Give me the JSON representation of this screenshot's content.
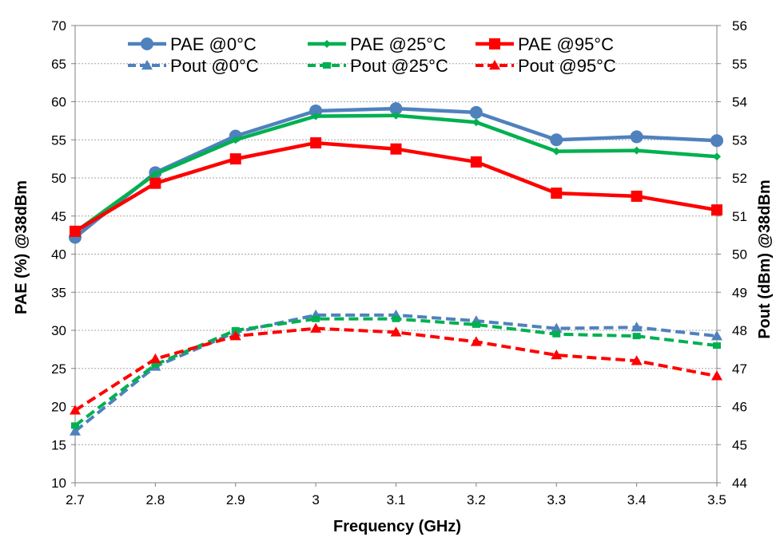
{
  "chart_data": {
    "type": "line",
    "x": [
      2.7,
      2.8,
      2.9,
      3.0,
      3.1,
      3.2,
      3.3,
      3.4,
      3.5
    ],
    "x_tick_labels": [
      "2.7",
      "2.8",
      "2.9",
      "3",
      "3.1",
      "3.2",
      "3.3",
      "3.4",
      "3.5"
    ],
    "xlabel": "Frequency (GHz)",
    "xlim": [
      2.7,
      3.5
    ],
    "ylabel_left": "PAE (%) @38dBm",
    "ylim_left": [
      10,
      70
    ],
    "yticks_left": [
      "10",
      "15",
      "20",
      "25",
      "30",
      "35",
      "40",
      "45",
      "50",
      "55",
      "60",
      "65",
      "70"
    ],
    "ylabel_right": "Pout (dBm) @38dBm",
    "ylim_right": [
      44,
      56
    ],
    "yticks_right": [
      "44",
      "45",
      "46",
      "47",
      "48",
      "49",
      "50",
      "51",
      "52",
      "53",
      "54",
      "55",
      "56"
    ],
    "grid": "horizontal dotted",
    "legend_position": "top, 3 columns by 2 rows",
    "series": [
      {
        "name": "PAE  @0°C",
        "axis": "left",
        "color": "#4f81bd",
        "style": "solid",
        "marker": "circle",
        "values": [
          42.2,
          50.7,
          55.5,
          58.8,
          59.1,
          58.6,
          55.0,
          55.4,
          54.9
        ]
      },
      {
        "name": "PAE  @25°C",
        "axis": "left",
        "color": "#00b050",
        "style": "solid",
        "marker": "diamond",
        "values": [
          42.9,
          50.5,
          55.0,
          58.1,
          58.2,
          57.3,
          53.5,
          53.6,
          52.8
        ]
      },
      {
        "name": "PAE  @95°C",
        "axis": "left",
        "color": "#ff0000",
        "style": "solid",
        "marker": "square",
        "values": [
          43.0,
          49.3,
          52.5,
          54.6,
          53.8,
          52.1,
          48.0,
          47.6,
          45.8
        ]
      },
      {
        "name": "Pout  @0°C",
        "axis": "right",
        "color": "#4f81bd",
        "style": "dashed",
        "marker": "triangle",
        "values": [
          45.35,
          47.05,
          47.95,
          48.4,
          48.4,
          48.25,
          48.05,
          48.08,
          47.85
        ]
      },
      {
        "name": "Pout  @25°C",
        "axis": "right",
        "color": "#00b050",
        "style": "dashed",
        "marker": "dash",
        "values": [
          45.5,
          47.1,
          48.0,
          48.3,
          48.3,
          48.15,
          47.9,
          47.85,
          47.6
        ]
      },
      {
        "name": "Pout  @95°C",
        "axis": "right",
        "color": "#ff0000",
        "style": "dashed",
        "marker": "triangle",
        "values": [
          45.9,
          47.25,
          47.85,
          48.05,
          47.95,
          47.7,
          47.35,
          47.2,
          46.8
        ]
      }
    ]
  }
}
